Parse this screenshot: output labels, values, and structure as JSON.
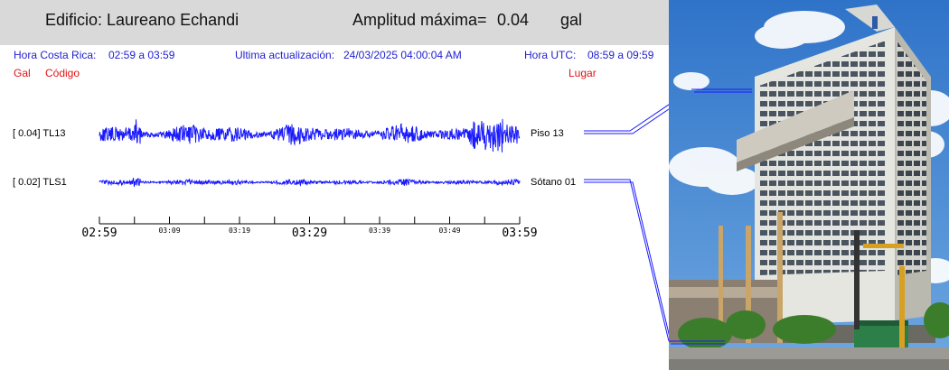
{
  "header": {
    "building_label": "Edificio: Laureano Echandi",
    "amplitude_label": "Amplitud máxima=",
    "amplitude_value": "0.04",
    "amplitude_unit": "gal"
  },
  "info": {
    "local_time_label": "Hora Costa Rica:",
    "local_time_range": "02:59 a 03:59",
    "last_update_label": "Ultima actualización:",
    "last_update_value": "24/03/2025 04:00:04 AM",
    "utc_label": "Hora UTC:",
    "utc_range": "08:59 a 09:59"
  },
  "columns": {
    "gal": "Gal",
    "code": "Código",
    "place": "Lugar"
  },
  "channels": [
    {
      "value": "0.04",
      "code": "TL13",
      "label": "[   0.04] TL13",
      "place": "Piso 13",
      "color": "#1a1aff"
    },
    {
      "value": "0.02",
      "code": "TLS1",
      "label": "[   0.02] TLS1",
      "place": "Sótano 01",
      "color": "#1a1aff"
    }
  ],
  "time_axis": {
    "major_labels": [
      "02:59",
      "03:29",
      "03:59"
    ],
    "minor_labels": [
      "03:09",
      "03:19",
      "03:39",
      "03:49"
    ]
  },
  "colors": {
    "trace": "#1a1aff",
    "info_text": "#1f1fcf",
    "column_headers": "#e01414",
    "header_bg": "#d9d9d9"
  },
  "photo": {
    "icon": "building-photo"
  }
}
